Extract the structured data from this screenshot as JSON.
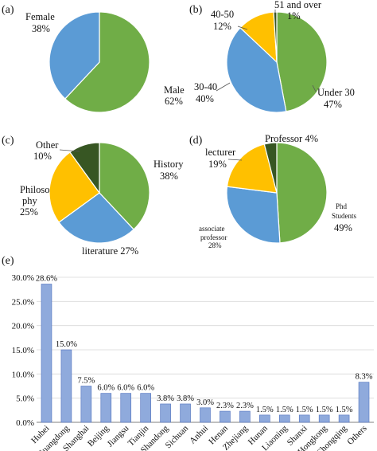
{
  "colors": {
    "green": "#70ad47",
    "blue": "#5b9bd5",
    "gold": "#ffc000",
    "dark_green": "#375623",
    "bar": "#8faadc",
    "bar_edge": "#4f71be",
    "grid": "#d9d9d9"
  },
  "chart_data": [
    {
      "id": "a",
      "panel_label": "(a)",
      "type": "pie",
      "slices": [
        {
          "name": "Male",
          "percent_label": "62%",
          "value": 62,
          "color": "#70ad47"
        },
        {
          "name": "Female",
          "percent_label": "38%",
          "value": 38,
          "color": "#5b9bd5"
        }
      ]
    },
    {
      "id": "b",
      "panel_label": "(b)",
      "type": "pie",
      "slices": [
        {
          "name": "Under 30",
          "percent_label": "47%",
          "value": 47,
          "color": "#70ad47"
        },
        {
          "name": "30-40",
          "percent_label": "40%",
          "value": 40,
          "color": "#5b9bd5"
        },
        {
          "name": "40-50",
          "percent_label": "12%",
          "value": 12,
          "color": "#ffc000"
        },
        {
          "name": "51 and over",
          "percent_label": "1%",
          "value": 1,
          "color": "#375623"
        }
      ]
    },
    {
      "id": "c",
      "panel_label": "(c)",
      "type": "pie",
      "slices": [
        {
          "name": "History",
          "percent_label": "38%",
          "value": 38,
          "color": "#70ad47"
        },
        {
          "name": "literature",
          "percent_label": "27%",
          "value": 27,
          "color": "#5b9bd5"
        },
        {
          "name": "Philoso phy",
          "name_lines": [
            "Philoso",
            "phy"
          ],
          "percent_label": "25%",
          "value": 25,
          "color": "#ffc000"
        },
        {
          "name": "Other",
          "percent_label": "10%",
          "value": 10,
          "color": "#375623"
        }
      ]
    },
    {
      "id": "d",
      "panel_label": "(d)",
      "type": "pie",
      "slices": [
        {
          "name": "Phd Students",
          "name_lines": [
            "Phd",
            "Students"
          ],
          "percent_label": "49%",
          "value": 49,
          "color": "#70ad47"
        },
        {
          "name": "associate professor",
          "name_lines": [
            "associate",
            "professor"
          ],
          "percent_label": "28%",
          "value": 28,
          "color": "#5b9bd5"
        },
        {
          "name": "lecturer",
          "percent_label": "19%",
          "value": 19,
          "color": "#ffc000"
        },
        {
          "name": "Professor",
          "percent_label": "4%",
          "value": 4,
          "color": "#375623"
        }
      ]
    },
    {
      "id": "e",
      "panel_label": "(e)",
      "type": "bar",
      "categories": [
        "Hubei",
        "Guangdong",
        "Shanghai",
        "Beijing",
        "Jiangsu",
        "Tianjin",
        "Shandong",
        "Sichuan",
        "Anhui",
        "Henan",
        "Zhejiang",
        "Hunan",
        "Liaoning",
        "Shanxi",
        "Hongkong",
        "Chongqing",
        "Others"
      ],
      "values": [
        28.6,
        15.0,
        7.5,
        6.0,
        6.0,
        6.0,
        3.8,
        3.8,
        3.0,
        2.3,
        2.3,
        1.5,
        1.5,
        1.5,
        1.5,
        1.5,
        8.3
      ],
      "value_labels": [
        "28.6%",
        "15.0%",
        "7.5%",
        "6.0%",
        "6.0%",
        "6.0%",
        "3.8%",
        "3.8%",
        "3.0%",
        "2.3%",
        "2.3%",
        "1.5%",
        "1.5%",
        "1.5%",
        "1.5%",
        "1.5%",
        "8.3%"
      ],
      "y_ticks": [
        0,
        5,
        10,
        15,
        20,
        25,
        30
      ],
      "y_tick_labels": [
        "0.0%",
        "5.0%",
        "10.0%",
        "15.0%",
        "20.0%",
        "25.0%",
        "30.0%"
      ],
      "ylim": [
        0,
        30
      ],
      "grid": true
    }
  ]
}
